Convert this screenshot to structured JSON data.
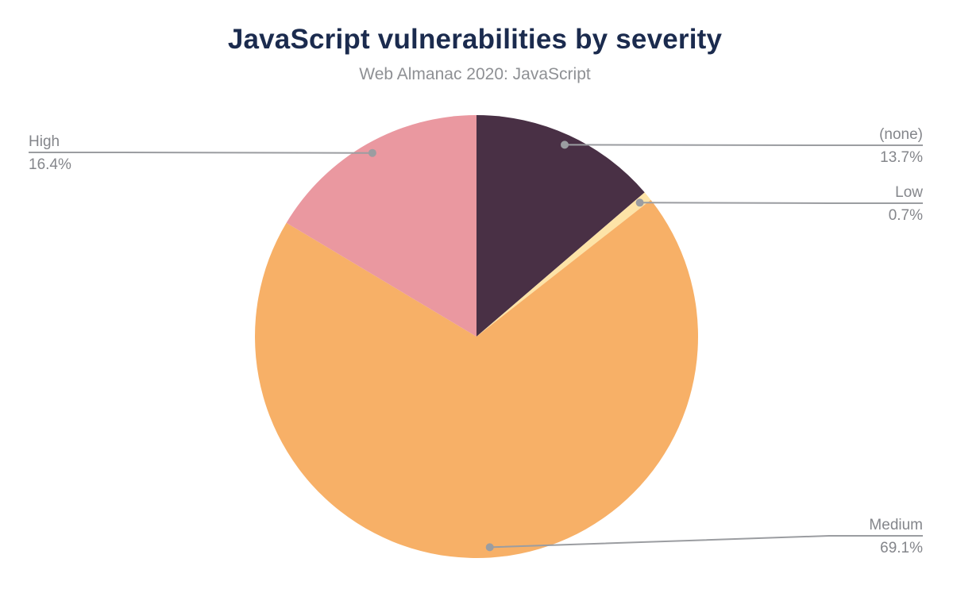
{
  "chart_data": {
    "type": "pie",
    "title": "JavaScript vulnerabilities by severity",
    "subtitle": "Web Almanac 2020: JavaScript",
    "unit": "%",
    "start_angle_deg": 0,
    "direction": "clockwise",
    "legend_position": "callout-labels",
    "slices": [
      {
        "label": "(none)",
        "value": 13.7,
        "pct_label": "13.7%",
        "color": "#493045"
      },
      {
        "label": "Low",
        "value": 0.7,
        "pct_label": "0.7%",
        "color": "#fde3a7"
      },
      {
        "label": "Medium",
        "value": 69.1,
        "pct_label": "69.1%",
        "color": "#f7b067"
      },
      {
        "label": "High",
        "value": 16.4,
        "pct_label": "16.4%",
        "color": "#ea98a0"
      }
    ],
    "colors": {
      "title": "#1b2b4e",
      "subtitle": "#8e9094",
      "callout_text": "#84868b",
      "leader_line": "#9b9da1",
      "background": "#ffffff"
    }
  }
}
